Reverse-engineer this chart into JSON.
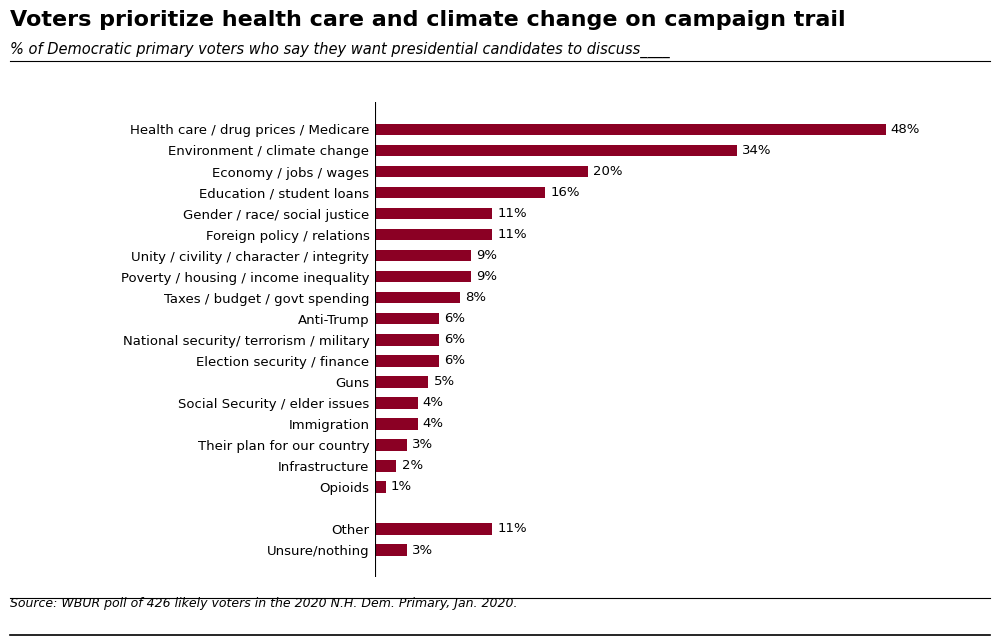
{
  "title": "Voters prioritize health care and climate change on campaign trail",
  "subtitle": "% of Democratic primary voters who say they want presidential candidates to discuss____",
  "source": "Source: WBUR poll of 426 likely voters in the 2020 N.H. Dem. Primary, Jan. 2020.",
  "categories": [
    "Health care / drug prices / Medicare",
    "Environment / climate change",
    "Economy / jobs / wages",
    "Education / student loans",
    "Gender / race/ social justice",
    "Foreign policy / relations",
    "Unity / civility / character / integrity",
    "Poverty / housing / income inequality",
    "Taxes / budget / govt spending",
    "Anti-Trump",
    "National security/ terrorism / military",
    "Election security / finance",
    "Guns",
    "Social Security / elder issues",
    "Immigration",
    "Their plan for our country",
    "Infrastructure",
    "Opioids",
    "",
    "Other",
    "Unsure/nothing"
  ],
  "values": [
    48,
    34,
    20,
    16,
    11,
    11,
    9,
    9,
    8,
    6,
    6,
    6,
    5,
    4,
    4,
    3,
    2,
    1,
    null,
    11,
    3
  ],
  "bar_color": "#8B0024",
  "title_fontsize": 16,
  "subtitle_fontsize": 10.5,
  "label_fontsize": 9.5,
  "value_fontsize": 9.5,
  "source_fontsize": 9.0,
  "background_color": "#FFFFFF",
  "xlim": [
    0,
    55
  ]
}
